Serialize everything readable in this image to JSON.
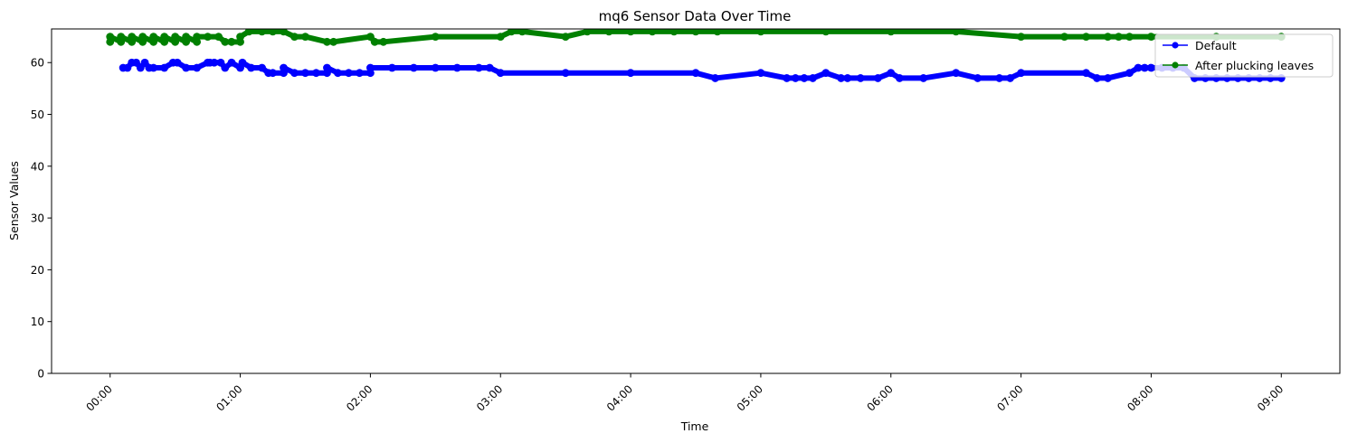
{
  "chart_data": {
    "type": "scatter",
    "title": "mq6 Sensor Data Over Time",
    "xlabel": "Time",
    "ylabel": "Sensor Values",
    "x_unit": "time (HH:MM)",
    "xlim": [
      "-00:27",
      "09:27"
    ],
    "ylim": [
      0,
      66.5
    ],
    "xticks": [
      "00:00",
      "01:00",
      "02:00",
      "03:00",
      "04:00",
      "05:00",
      "06:00",
      "07:00",
      "08:00",
      "09:00"
    ],
    "yticks": [
      0,
      10,
      20,
      30,
      40,
      50,
      60
    ],
    "grid": false,
    "legend_position": "top-right",
    "series": [
      {
        "name": "Default",
        "color": "#0000ff",
        "marker": "circle",
        "points": [
          [
            "00:06",
            59
          ],
          [
            "00:08",
            59
          ],
          [
            "00:10",
            60
          ],
          [
            "00:12",
            60
          ],
          [
            "00:14",
            59
          ],
          [
            "00:16",
            60
          ],
          [
            "00:18",
            59
          ],
          [
            "00:20",
            59
          ],
          [
            "00:25",
            59
          ],
          [
            "00:29",
            60
          ],
          [
            "00:31",
            60
          ],
          [
            "00:35",
            59
          ],
          [
            "00:40",
            59
          ],
          [
            "00:45",
            60
          ],
          [
            "00:48",
            60
          ],
          [
            "00:51",
            60
          ],
          [
            "00:53",
            59
          ],
          [
            "00:56",
            60
          ],
          [
            "01:00",
            59
          ],
          [
            "01:05",
            59
          ],
          [
            "01:10",
            59
          ],
          [
            "00:46",
            60
          ],
          [
            "01:01",
            60
          ],
          [
            "01:13",
            58
          ],
          [
            "01:15",
            58
          ],
          [
            "01:20",
            58
          ],
          [
            "01:25",
            58
          ],
          [
            "01:30",
            58
          ],
          [
            "01:35",
            58
          ],
          [
            "01:40",
            58
          ],
          [
            "01:45",
            58
          ],
          [
            "01:50",
            58
          ],
          [
            "01:55",
            58
          ],
          [
            "02:00",
            58
          ],
          [
            "02:10",
            59
          ],
          [
            "02:20",
            59
          ],
          [
            "02:30",
            59
          ],
          [
            "02:40",
            59
          ],
          [
            "02:50",
            59
          ],
          [
            "02:55",
            59
          ],
          [
            "02:00",
            59
          ],
          [
            "01:40",
            59
          ],
          [
            "01:20",
            59
          ],
          [
            "03:00",
            58
          ],
          [
            "03:30",
            58
          ],
          [
            "04:00",
            58
          ],
          [
            "04:30",
            58
          ],
          [
            "04:39",
            57
          ],
          [
            "05:00",
            58
          ],
          [
            "05:12",
            57
          ],
          [
            "05:16",
            57
          ],
          [
            "05:20",
            57
          ],
          [
            "05:24",
            57
          ],
          [
            "05:30",
            58
          ],
          [
            "05:37",
            57
          ],
          [
            "05:40",
            57
          ],
          [
            "05:46",
            57
          ],
          [
            "05:54",
            57
          ],
          [
            "06:00",
            58
          ],
          [
            "06:04",
            57
          ],
          [
            "06:15",
            57
          ],
          [
            "06:30",
            58
          ],
          [
            "06:40",
            57
          ],
          [
            "06:50",
            57
          ],
          [
            "06:55",
            57
          ],
          [
            "07:00",
            58
          ],
          [
            "07:30",
            58
          ],
          [
            "07:35",
            57
          ],
          [
            "07:40",
            57
          ],
          [
            "07:50",
            58
          ],
          [
            "07:54",
            59
          ],
          [
            "07:57",
            59
          ],
          [
            "08:00",
            59
          ],
          [
            "08:05",
            59
          ],
          [
            "08:10",
            59
          ],
          [
            "08:15",
            59
          ],
          [
            "08:20",
            57
          ],
          [
            "08:25",
            57
          ],
          [
            "08:30",
            57
          ],
          [
            "08:35",
            57
          ],
          [
            "08:40",
            57
          ],
          [
            "08:45",
            57
          ],
          [
            "08:50",
            57
          ],
          [
            "08:55",
            57
          ],
          [
            "09:00",
            57
          ]
        ]
      },
      {
        "name": "After plucking leaves",
        "color": "#008000",
        "marker": "circle",
        "points": [
          [
            "00:00",
            64
          ],
          [
            "00:00",
            65
          ],
          [
            "00:05",
            64
          ],
          [
            "00:05",
            65
          ],
          [
            "00:10",
            64
          ],
          [
            "00:10",
            65
          ],
          [
            "00:15",
            64
          ],
          [
            "00:15",
            65
          ],
          [
            "00:20",
            64
          ],
          [
            "00:20",
            65
          ],
          [
            "00:25",
            64
          ],
          [
            "00:25",
            65
          ],
          [
            "00:30",
            64
          ],
          [
            "00:30",
            65
          ],
          [
            "00:35",
            64
          ],
          [
            "00:35",
            65
          ],
          [
            "00:40",
            64
          ],
          [
            "00:40",
            65
          ],
          [
            "00:45",
            65
          ],
          [
            "00:50",
            65
          ],
          [
            "00:53",
            64
          ],
          [
            "00:56",
            64
          ],
          [
            "01:00",
            64
          ],
          [
            "01:00",
            65
          ],
          [
            "01:04",
            66
          ],
          [
            "01:10",
            66
          ],
          [
            "01:15",
            66
          ],
          [
            "01:20",
            66
          ],
          [
            "01:25",
            65
          ],
          [
            "01:30",
            65
          ],
          [
            "01:40",
            64
          ],
          [
            "01:43",
            64
          ],
          [
            "02:00",
            65
          ],
          [
            "02:02",
            64
          ],
          [
            "02:06",
            64
          ],
          [
            "02:30",
            65
          ],
          [
            "03:00",
            65
          ],
          [
            "03:05",
            66
          ],
          [
            "03:10",
            66
          ],
          [
            "03:30",
            65
          ],
          [
            "03:40",
            66
          ],
          [
            "03:50",
            66
          ],
          [
            "04:00",
            66
          ],
          [
            "04:10",
            66
          ],
          [
            "04:20",
            66
          ],
          [
            "04:30",
            66
          ],
          [
            "04:40",
            66
          ],
          [
            "05:00",
            66
          ],
          [
            "05:30",
            66
          ],
          [
            "06:00",
            66
          ],
          [
            "06:30",
            66
          ],
          [
            "07:00",
            65
          ],
          [
            "07:20",
            65
          ],
          [
            "07:30",
            65
          ],
          [
            "07:40",
            65
          ],
          [
            "07:45",
            65
          ],
          [
            "07:50",
            65
          ],
          [
            "08:00",
            65
          ],
          [
            "08:30",
            65
          ],
          [
            "09:00",
            65
          ]
        ]
      }
    ]
  }
}
